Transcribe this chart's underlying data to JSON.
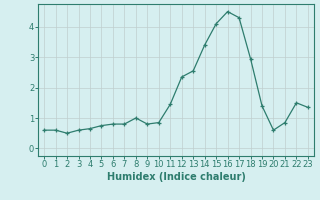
{
  "x": [
    0,
    1,
    2,
    3,
    4,
    5,
    6,
    7,
    8,
    9,
    10,
    11,
    12,
    13,
    14,
    15,
    16,
    17,
    18,
    19,
    20,
    21,
    22,
    23
  ],
  "y": [
    0.6,
    0.6,
    0.5,
    0.6,
    0.65,
    0.75,
    0.8,
    0.8,
    1.0,
    0.8,
    0.85,
    1.45,
    2.35,
    2.55,
    3.4,
    4.1,
    4.5,
    4.3,
    2.95,
    1.4,
    0.6,
    0.85,
    1.5,
    1.35
  ],
  "line_color": "#2e7d6e",
  "marker": "+",
  "xlabel": "Humidex (Indice chaleur)",
  "xlim": [
    -0.5,
    23.5
  ],
  "ylim": [
    -0.25,
    4.75
  ],
  "yticks": [
    0,
    1,
    2,
    3,
    4
  ],
  "xticks": [
    0,
    1,
    2,
    3,
    4,
    5,
    6,
    7,
    8,
    9,
    10,
    11,
    12,
    13,
    14,
    15,
    16,
    17,
    18,
    19,
    20,
    21,
    22,
    23
  ],
  "bg_color": "#d6eff0",
  "grid_color": "#c8dada",
  "line_grid_color": "#c0cece",
  "tick_color": "#2e7d6e",
  "label_color": "#2e7d6e",
  "label_fontsize": 7,
  "tick_fontsize": 6
}
